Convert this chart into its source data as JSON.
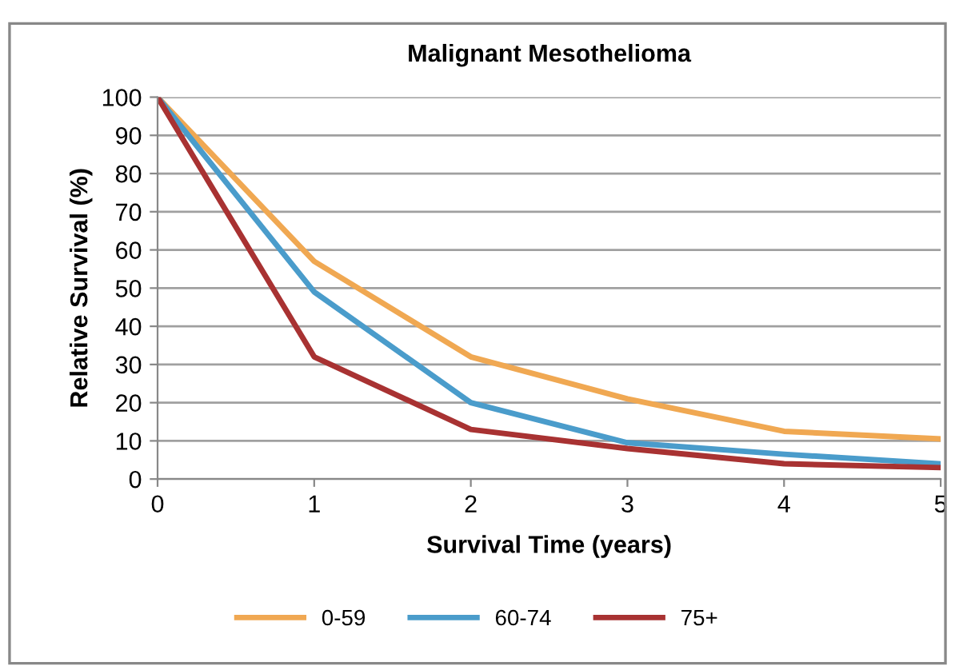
{
  "chart_data": {
    "type": "line",
    "title": "Malignant Mesothelioma",
    "xlabel": "Survival Time (years)",
    "ylabel": "Relative Survival (%)",
    "x": [
      0,
      1,
      2,
      3,
      4,
      5
    ],
    "series": [
      {
        "name": "0-59",
        "color": "#f0a852",
        "values": [
          100,
          57,
          32,
          21,
          12.5,
          10.5
        ]
      },
      {
        "name": "60-74",
        "color": "#4a9ccb",
        "values": [
          100,
          49,
          20,
          9.5,
          6.5,
          4
        ]
      },
      {
        "name": "75+",
        "color": "#a83232",
        "values": [
          100,
          32,
          13,
          8,
          4,
          3
        ]
      }
    ],
    "xlim": [
      0,
      5
    ],
    "xticks": [
      0,
      1,
      2,
      3,
      4,
      5
    ],
    "ylim": [
      0,
      100
    ],
    "yticks": [
      0,
      10,
      20,
      30,
      40,
      50,
      60,
      70,
      80,
      90,
      100
    ],
    "grid": "y",
    "legend": "bottom",
    "marker": "none",
    "line_style": "solid"
  }
}
